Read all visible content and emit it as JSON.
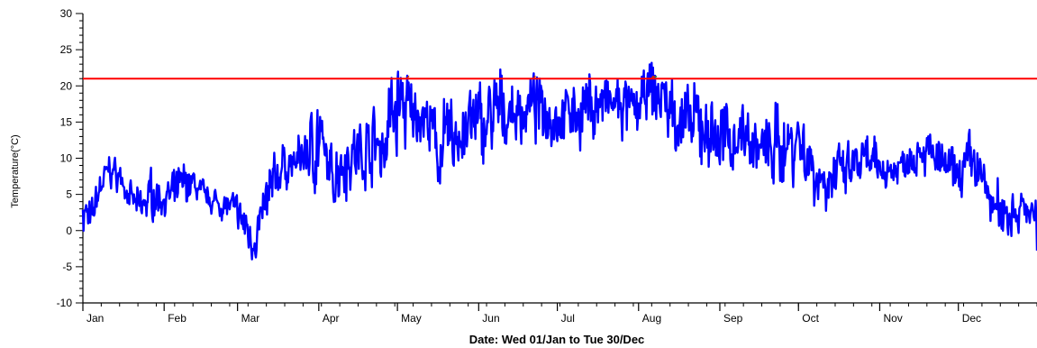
{
  "chart_data": {
    "type": "line",
    "title": "",
    "ylabel": "Temperature(°C)",
    "xlabel": "Date: Wed 01/Jan to Tue 30/Dec",
    "xlim": [
      0,
      364
    ],
    "ylim": [
      -10,
      30
    ],
    "yticks": [
      -10,
      -5,
      0,
      5,
      10,
      15,
      20,
      25,
      30
    ],
    "grid": false,
    "legend": "none",
    "months": [
      {
        "label": "Jan",
        "day": 0
      },
      {
        "label": "Feb",
        "day": 31
      },
      {
        "label": "Mar",
        "day": 59
      },
      {
        "label": "Apr",
        "day": 90
      },
      {
        "label": "May",
        "day": 120
      },
      {
        "label": "Jun",
        "day": 151
      },
      {
        "label": "Jul",
        "day": 181
      },
      {
        "label": "Aug",
        "day": 212
      },
      {
        "label": "Sep",
        "day": 243
      },
      {
        "label": "Oct",
        "day": 273
      },
      {
        "label": "Nov",
        "day": 304
      },
      {
        "label": "Dec",
        "day": 334
      }
    ],
    "threshold": {
      "value": 21,
      "color": "#ff0000"
    },
    "series": [
      {
        "color": "#0000ff",
        "envelope": {
          "x": [
            0,
            3,
            6,
            10,
            14,
            18,
            22,
            26,
            30,
            34,
            38,
            42,
            46,
            50,
            55,
            59,
            62,
            65,
            68,
            72,
            76,
            80,
            84,
            88,
            90,
            92,
            95,
            100,
            105,
            110,
            115,
            118,
            121,
            125,
            128,
            131,
            135,
            140,
            145,
            151,
            156,
            160,
            165,
            170,
            175,
            181,
            186,
            190,
            195,
            200,
            205,
            210,
            212,
            215,
            218,
            222,
            226,
            230,
            235,
            240,
            243,
            248,
            252,
            256,
            260,
            265,
            270,
            273,
            276,
            280,
            285,
            290,
            295,
            300,
            304,
            310,
            315,
            320,
            325,
            330,
            334,
            338,
            342,
            346,
            350,
            354,
            358,
            362,
            364
          ],
          "low": [
            -1,
            -2,
            3,
            6,
            5,
            2,
            0,
            1,
            2,
            1,
            3,
            4,
            3,
            2,
            1,
            0,
            -3,
            -5,
            -2,
            2,
            5,
            6,
            7,
            5,
            4,
            6,
            3,
            4,
            5,
            6,
            4,
            8,
            9,
            10,
            12,
            12,
            5,
            4,
            7,
            8,
            9,
            10,
            11,
            12,
            12,
            11,
            12,
            11,
            12,
            13,
            12,
            12,
            13,
            14,
            13,
            12,
            10,
            9,
            8,
            7,
            6,
            8,
            9,
            7,
            6,
            5,
            6,
            6,
            5,
            2,
            1,
            3,
            5,
            4,
            5,
            6,
            7,
            8,
            6,
            5,
            4,
            6,
            4,
            0,
            -2,
            -3,
            0,
            1,
            -5
          ],
          "high": [
            7,
            4,
            8,
            11,
            10,
            7,
            6,
            9,
            7,
            8,
            10,
            9,
            7,
            6,
            6,
            5,
            4,
            2,
            5,
            10,
            13,
            12,
            14,
            18,
            22,
            14,
            12,
            17,
            16,
            18,
            20,
            24,
            26,
            22,
            20,
            19,
            18,
            20,
            21,
            21,
            22,
            23,
            21,
            22,
            22,
            20,
            21,
            22,
            23,
            22,
            22,
            21,
            21,
            23,
            25,
            24,
            22,
            20,
            21,
            20,
            19,
            18,
            19,
            17,
            16,
            18,
            19,
            20,
            16,
            13,
            14,
            12,
            13,
            14,
            12,
            11,
            13,
            15,
            14,
            12,
            11,
            14,
            13,
            8,
            7,
            9,
            6,
            5,
            4
          ]
        },
        "samples_per_day": 4,
        "seed": 7
      }
    ]
  }
}
